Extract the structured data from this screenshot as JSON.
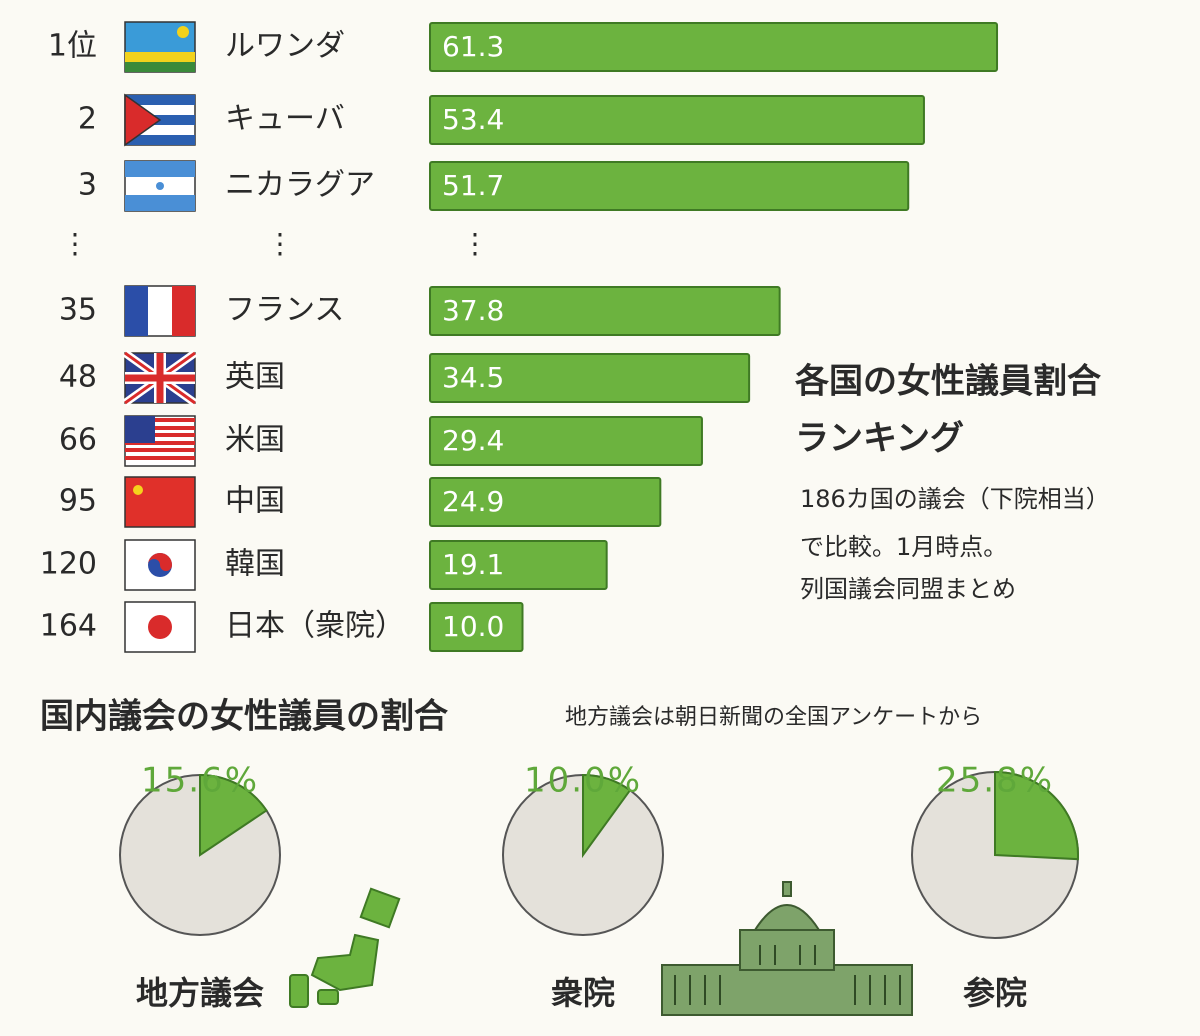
{
  "chart_data": [
    {
      "type": "bar",
      "title": "各国の女性議員割合",
      "subtitle": "ランキング",
      "notes": [
        "186カ国の議会（下院相当）",
        "で比較。1月時点。",
        "列国議会同盟まとめ"
      ],
      "ranks": [
        "1位",
        "2",
        "3",
        "35",
        "48",
        "66",
        "95",
        "120",
        "164"
      ],
      "ellipsis": "⋮",
      "categories": [
        "ルワンダ",
        "キューバ",
        "ニカラグア",
        "フランス",
        "英国",
        "米国",
        "中国",
        "韓国",
        "日本（衆院）"
      ],
      "values": [
        61.3,
        53.4,
        51.7,
        37.8,
        34.5,
        29.4,
        24.9,
        19.1,
        10.0
      ],
      "value_labels": [
        "61.3",
        "53.4",
        "51.7",
        "37.8",
        "34.5",
        "29.4",
        "24.9",
        "19.1",
        "10.0"
      ],
      "color": "#6cb33f"
    },
    {
      "type": "pie",
      "title": "国内議会の女性議員の割合",
      "subtitle": "地方議会は朝日新聞の全国アンケートから",
      "categories": [
        "地方議会"
      ],
      "values": [
        15.6
      ],
      "value_labels": [
        "15.6%"
      ],
      "color": "#6cb33f"
    },
    {
      "type": "pie",
      "categories": [
        "衆院"
      ],
      "values": [
        10.0
      ],
      "value_labels": [
        "10.0%"
      ],
      "color": "#6cb33f"
    },
    {
      "type": "pie",
      "categories": [
        "参院"
      ],
      "values": [
        25.8
      ],
      "value_labels": [
        "25.8%"
      ],
      "color": "#6cb33f"
    }
  ]
}
